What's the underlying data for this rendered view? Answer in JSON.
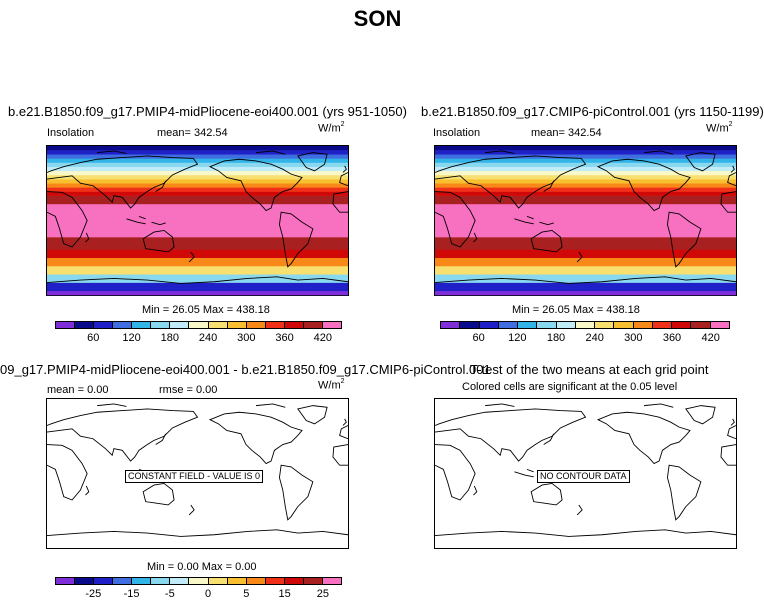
{
  "figure": {
    "title": "SON"
  },
  "panels": [
    {
      "title": "b.e21.B1850.f09_g17.PMIP4-midPliocene-eoi400.001 (yrs 951-1050)",
      "left_label": "Insolation",
      "mean_label": "mean=",
      "mean_value": "342.54",
      "units": "W/m",
      "units_sup": "2",
      "min_label": "Min =",
      "min_value": "26.05",
      "max_label": "Max =",
      "max_value": "438.18"
    },
    {
      "title": "b.e21.B1850.f09_g17.CMIP6-piControl.001 (yrs 1150-1199)",
      "left_label": "Insolation",
      "mean_label": "mean=",
      "mean_value": "342.54",
      "units": "W/m",
      "units_sup": "2",
      "min_label": "Min =",
      "min_value": "26.05",
      "max_label": "Max =",
      "max_value": "438.18"
    },
    {
      "title": "09_g17.PMIP4-midPliocene-eoi400.001 - b.e21.B1850.f09_g17.CMIP6-piControl.001",
      "mean_label": "mean =",
      "mean_value": "0.00",
      "rmse_label": "rmse =",
      "rmse_value": "0.00",
      "units": "W/m",
      "units_sup": "2",
      "min_label": "Min =",
      "min_value": "0.00",
      "max_label": "Max =",
      "max_value": "0.00",
      "notice": "CONSTANT FIELD - VALUE IS 0"
    },
    {
      "title": "T-test of the two means at each grid point",
      "subtitle": "Colored cells are significant at the 0.05 level",
      "notice": "NO CONTOUR DATA"
    }
  ],
  "chart_data": [
    {
      "type": "heatmap",
      "variable": "Insolation",
      "panel": "top-left",
      "colorbar_ticks": [
        "60",
        "120",
        "180",
        "240",
        "300",
        "360",
        "420"
      ],
      "levels": [
        30,
        60,
        90,
        120,
        150,
        180,
        210,
        240,
        270,
        300,
        330,
        360,
        390,
        420
      ],
      "lat_bands": [
        {
          "lat_from": -90,
          "lat_to": -85,
          "value": 26
        },
        {
          "lat_from": -85,
          "lat_to": -75,
          "value": 75
        },
        {
          "lat_from": -75,
          "lat_to": -65,
          "value": 175
        },
        {
          "lat_from": -65,
          "lat_to": -55,
          "value": 255
        },
        {
          "lat_from": -55,
          "lat_to": -45,
          "value": 315
        },
        {
          "lat_from": -45,
          "lat_to": -35,
          "value": 365
        },
        {
          "lat_from": -35,
          "lat_to": -20,
          "value": 405
        },
        {
          "lat_from": -20,
          "lat_to": 20,
          "value": 435
        },
        {
          "lat_from": 20,
          "lat_to": 30,
          "value": 405
        },
        {
          "lat_from": 30,
          "lat_to": 35,
          "value": 375
        },
        {
          "lat_from": 35,
          "lat_to": 40,
          "value": 345
        },
        {
          "lat_from": 40,
          "lat_to": 45,
          "value": 315
        },
        {
          "lat_from": 45,
          "lat_to": 50,
          "value": 285
        },
        {
          "lat_from": 50,
          "lat_to": 55,
          "value": 255
        },
        {
          "lat_from": 55,
          "lat_to": 60,
          "value": 225
        },
        {
          "lat_from": 60,
          "lat_to": 65,
          "value": 195
        },
        {
          "lat_from": 65,
          "lat_to": 70,
          "value": 165
        },
        {
          "lat_from": 70,
          "lat_to": 75,
          "value": 135
        },
        {
          "lat_from": 75,
          "lat_to": 80,
          "value": 105
        },
        {
          "lat_from": 80,
          "lat_to": 85,
          "value": 75
        },
        {
          "lat_from": 85,
          "lat_to": 90,
          "value": 45
        }
      ],
      "min": 26.05,
      "max": 438.18,
      "mean": 342.54
    },
    {
      "type": "heatmap",
      "variable": "Insolation",
      "panel": "top-right",
      "colorbar_ticks": [
        "60",
        "120",
        "180",
        "240",
        "300",
        "360",
        "420"
      ],
      "same_field_as": "top-left",
      "min": 26.05,
      "max": 438.18,
      "mean": 342.54
    },
    {
      "type": "heatmap",
      "variable": "difference",
      "panel": "bottom-left",
      "colorbar_ticks": [
        "-25",
        "-15",
        "-5",
        "0",
        "5",
        "15",
        "25"
      ],
      "constant_value": 0,
      "min": 0.0,
      "max": 0.0,
      "mean": 0.0,
      "rmse": 0.0
    },
    {
      "type": "heatmap",
      "variable": "t-test significance",
      "panel": "bottom-right",
      "values": []
    }
  ],
  "colors": {
    "palette": [
      "#7e2fd9",
      "#0a0a8c",
      "#2020c8",
      "#3f6ee0",
      "#33b4e8",
      "#88d8f0",
      "#c0ecf8",
      "#f8f8c8",
      "#f8e070",
      "#f8c030",
      "#f88818",
      "#f03018",
      "#d00808",
      "#a82020",
      "#f870c0"
    ]
  }
}
